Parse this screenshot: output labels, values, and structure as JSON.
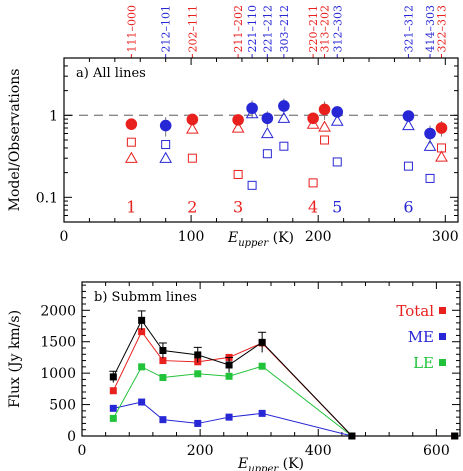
{
  "chart_data": [
    {
      "type": "scatter",
      "panel_label": "a)  All lines",
      "xlabel": "E",
      "xlabel_sub": "upper",
      "xlabel_unit": " (K)",
      "ylabel": "Model/Observations",
      "xlim": [
        0,
        310
      ],
      "ylim": [
        0.05,
        5
      ],
      "yscale": "log",
      "xticks": [
        0,
        100,
        200,
        300
      ],
      "yticks": [
        0.1,
        1
      ],
      "reference_line": 1,
      "colors": {
        "red": "#e8201e",
        "blue": "#2727d6",
        "gray": "#777777",
        "black": "#000000"
      },
      "transitions": [
        {
          "label": "111–000",
          "x": 53,
          "color": "red"
        },
        {
          "label": "212–101",
          "x": 80,
          "color": "blue"
        },
        {
          "label": "202–111",
          "x": 101,
          "color": "red"
        },
        {
          "label": "211–202",
          "x": 137,
          "color": "red"
        },
        {
          "label": "221–110",
          "x": 148,
          "color": "blue"
        },
        {
          "label": "221–212",
          "x": 160,
          "color": "blue"
        },
        {
          "label": "303–212",
          "x": 173,
          "color": "blue"
        },
        {
          "label": "220–211",
          "x": 196,
          "color": "red"
        },
        {
          "label": "313–202",
          "x": 205,
          "color": "red"
        },
        {
          "label": "312–303",
          "x": 215,
          "color": "blue"
        },
        {
          "label": "321–312",
          "x": 271,
          "color": "blue"
        },
        {
          "label": "414–303",
          "x": 288,
          "color": "blue"
        },
        {
          "label": "322–313",
          "x": 297,
          "color": "red"
        }
      ],
      "groups": [
        {
          "label": "1",
          "x": 53,
          "color": "red"
        },
        {
          "label": "2",
          "x": 101,
          "color": "red"
        },
        {
          "label": "3",
          "x": 137,
          "color": "red"
        },
        {
          "label": "4",
          "x": 196,
          "color": "red"
        },
        {
          "label": "5",
          "x": 215,
          "color": "blue"
        },
        {
          "label": "6",
          "x": 271,
          "color": "blue"
        }
      ],
      "series": [
        {
          "marker": "filled-circle",
          "points": [
            {
              "x": 53,
              "y": 0.78,
              "color": "red",
              "err": 0
            },
            {
              "x": 80,
              "y": 0.75,
              "color": "blue",
              "err": 0.2
            },
            {
              "x": 101,
              "y": 0.89,
              "color": "red",
              "err": 0
            },
            {
              "x": 137,
              "y": 0.88,
              "color": "red",
              "err": 0
            },
            {
              "x": 148,
              "y": 1.22,
              "color": "blue",
              "err": 0.3
            },
            {
              "x": 160,
              "y": 0.92,
              "color": "blue",
              "err": 0.2
            },
            {
              "x": 173,
              "y": 1.3,
              "color": "blue",
              "err": 0.3
            },
            {
              "x": 196,
              "y": 0.92,
              "color": "red",
              "err": 0
            },
            {
              "x": 205,
              "y": 1.18,
              "color": "red",
              "err": 0.3
            },
            {
              "x": 215,
              "y": 1.1,
              "color": "blue",
              "err": 0
            },
            {
              "x": 271,
              "y": 0.98,
              "color": "blue",
              "err": 0
            },
            {
              "x": 288,
              "y": 0.6,
              "color": "blue",
              "err": 0.15
            },
            {
              "x": 297,
              "y": 0.7,
              "color": "red",
              "err": 0.15
            }
          ]
        },
        {
          "marker": "open-triangle",
          "points": [
            {
              "x": 53,
              "y": 0.3,
              "color": "red"
            },
            {
              "x": 80,
              "y": 0.3,
              "color": "blue"
            },
            {
              "x": 101,
              "y": 0.68,
              "color": "red"
            },
            {
              "x": 137,
              "y": 0.7,
              "color": "red"
            },
            {
              "x": 148,
              "y": 1.05,
              "color": "blue"
            },
            {
              "x": 160,
              "y": 0.6,
              "color": "blue"
            },
            {
              "x": 173,
              "y": 0.92,
              "color": "blue"
            },
            {
              "x": 196,
              "y": 0.78,
              "color": "red"
            },
            {
              "x": 205,
              "y": 0.72,
              "color": "red"
            },
            {
              "x": 215,
              "y": 0.85,
              "color": "blue"
            },
            {
              "x": 271,
              "y": 0.75,
              "color": "blue"
            },
            {
              "x": 288,
              "y": 0.42,
              "color": "blue"
            },
            {
              "x": 297,
              "y": 0.31,
              "color": "red"
            }
          ]
        },
        {
          "marker": "open-square",
          "points": [
            {
              "x": 53,
              "y": 0.47,
              "color": "red"
            },
            {
              "x": 80,
              "y": 0.44,
              "color": "blue"
            },
            {
              "x": 101,
              "y": 0.3,
              "color": "red"
            },
            {
              "x": 137,
              "y": 0.19,
              "color": "red"
            },
            {
              "x": 148,
              "y": 0.14,
              "color": "blue"
            },
            {
              "x": 160,
              "y": 0.34,
              "color": "blue"
            },
            {
              "x": 173,
              "y": 0.42,
              "color": "blue"
            },
            {
              "x": 196,
              "y": 0.15,
              "color": "red"
            },
            {
              "x": 205,
              "y": 0.5,
              "color": "red"
            },
            {
              "x": 215,
              "y": 0.27,
              "color": "blue"
            },
            {
              "x": 271,
              "y": 0.24,
              "color": "blue"
            },
            {
              "x": 288,
              "y": 0.17,
              "color": "blue"
            },
            {
              "x": 297,
              "y": 0.4,
              "color": "red"
            }
          ]
        }
      ]
    },
    {
      "type": "line",
      "panel_label": "b)  Submm lines",
      "xlabel": "E",
      "xlabel_sub": "upper",
      "xlabel_unit": " (K)",
      "ylabel": "Flux (Jy km/s)",
      "xlim": [
        0,
        640
      ],
      "ylim": [
        0,
        2450
      ],
      "xticks": [
        0,
        200,
        400,
        600
      ],
      "yticks": [
        0,
        500,
        1000,
        1500,
        2000
      ],
      "legend_position": "right",
      "x": [
        53,
        101,
        137,
        196,
        249,
        305,
        457,
        631
      ],
      "series": [
        {
          "name": "Total",
          "color": "#000000",
          "legend_color": "#e8201e",
          "values": [
            940,
            1840,
            1360,
            1290,
            1130,
            1490,
            0,
            0
          ],
          "errors": [
            90,
            150,
            120,
            120,
            120,
            160,
            0,
            0
          ]
        },
        {
          "name": "Total model",
          "color": "#e8201e",
          "legend": false,
          "values": [
            720,
            1660,
            1200,
            1180,
            1250,
            1480,
            0,
            0
          ]
        },
        {
          "name": "ME",
          "color": "#2727d6",
          "values": [
            440,
            540,
            260,
            200,
            300,
            360,
            0,
            0
          ]
        },
        {
          "name": "LE",
          "color": "#22c33a",
          "values": [
            280,
            1100,
            930,
            990,
            950,
            1110,
            0,
            0
          ]
        }
      ]
    }
  ]
}
